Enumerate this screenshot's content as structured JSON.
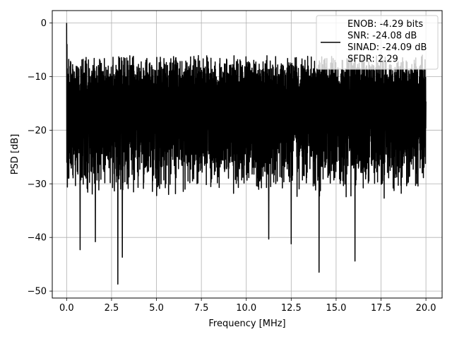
{
  "chart_data": {
    "type": "line",
    "xlabel": "Frequency [MHz]",
    "ylabel": "PSD [dB]",
    "xlim": [
      -0.8,
      20.9
    ],
    "ylim": [
      -51.3,
      2.3
    ],
    "xticks": [
      0,
      2.5,
      5,
      7.5,
      10,
      12.5,
      15,
      17.5,
      20
    ],
    "xtick_labels": [
      "0.0",
      "2.5",
      "5.0",
      "7.5",
      "10.0",
      "12.5",
      "15.0",
      "17.5",
      "20.0"
    ],
    "yticks": [
      0,
      -10,
      -20,
      -30,
      -40,
      -50
    ],
    "ytick_labels": [
      "0",
      "−10",
      "−20",
      "−30",
      "−40",
      "−50"
    ],
    "grid": true,
    "legend_position": "top-right",
    "line_color": "#000000",
    "series": [
      {
        "name": "ENOB: -4.29 bits\nSNR: -24.08 dB\nSINAD: -24.09 dB\nSFDR: 2.29",
        "x_start": 0,
        "x_end": 20,
        "peak": [
          0,
          0
        ],
        "notable_dips": [
          [
            0.75,
            -42.3
          ],
          [
            1.6,
            -40.8
          ],
          [
            2.85,
            -48.7
          ],
          [
            3.1,
            -43.7
          ],
          [
            11.25,
            -40.3
          ],
          [
            12.5,
            -41.2
          ],
          [
            14.05,
            -46.5
          ],
          [
            16.05,
            -44.4
          ]
        ],
        "typical_upper_envelope": -8,
        "typical_lower_envelope": -30
      }
    ]
  }
}
